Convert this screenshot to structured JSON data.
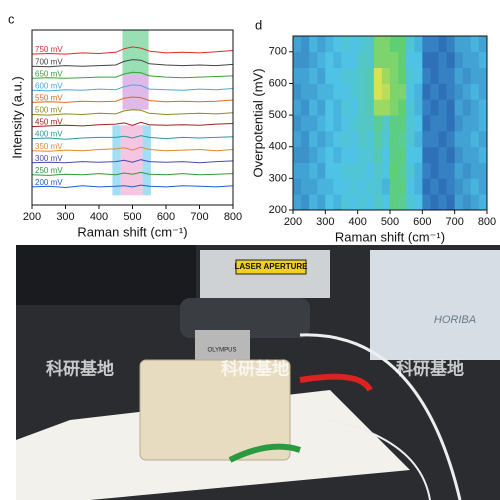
{
  "chart_data": [
    {
      "type": "line",
      "panel": "c",
      "ylabel": "Intensity (a.u.)",
      "xlabel": "Raman shift (cm⁻¹)",
      "xlim": [
        200,
        800
      ],
      "xticks": [
        200,
        300,
        400,
        500,
        600,
        700,
        800
      ],
      "ylim": [
        -0.5,
        14
      ],
      "x": [
        200,
        250,
        300,
        350,
        400,
        450,
        475,
        500,
        525,
        550,
        600,
        650,
        700,
        750,
        800
      ],
      "bands": [
        {
          "x": [
            470,
            548
          ],
          "y": [
            10.3,
            14
          ],
          "color": "#86d9a6"
        },
        {
          "x": [
            470,
            548
          ],
          "y": [
            7.4,
            10.3
          ],
          "color": "#d9ade3"
        },
        {
          "x": [
            440,
            465
          ],
          "y": [
            0.3,
            6.1
          ],
          "color": "#93d8f2"
        },
        {
          "x": [
            530,
            555
          ],
          "y": [
            0.3,
            6.1
          ],
          "color": "#93d8f2"
        },
        {
          "x": [
            465,
            530
          ],
          "y": [
            0.3,
            6.1
          ],
          "color": "#f2bcdc"
        }
      ],
      "series": [
        {
          "name": "200 mV",
          "color": "#1f5fd0",
          "values": [
            1.0,
            1.05,
            0.95,
            1.1,
            1.0,
            1.05,
            1.1,
            1.0,
            1.15,
            1.05,
            1.0,
            1.1,
            1.05,
            1.0,
            1.1
          ]
        },
        {
          "name": "250 mV",
          "color": "#2e9a3a",
          "values": [
            2.0,
            1.95,
            2.05,
            2.0,
            2.1,
            2.0,
            2.15,
            2.05,
            2.2,
            2.05,
            2.0,
            2.1,
            2.0,
            2.05,
            2.1
          ]
        },
        {
          "name": "300 mV",
          "color": "#4a4ab0",
          "values": [
            3.0,
            3.05,
            3.0,
            3.1,
            3.05,
            3.1,
            3.2,
            3.05,
            3.25,
            3.1,
            3.05,
            3.1,
            3.0,
            3.1,
            3.15
          ]
        },
        {
          "name": "350 mV",
          "color": "#e08a2a",
          "values": [
            4.0,
            3.95,
            4.05,
            4.0,
            4.1,
            4.15,
            4.25,
            4.05,
            4.3,
            4.1,
            4.0,
            4.05,
            4.1,
            4.0,
            4.1
          ]
        },
        {
          "name": "400 mV",
          "color": "#2a9a9a",
          "values": [
            5.0,
            5.05,
            4.95,
            5.05,
            5.1,
            5.1,
            5.2,
            5.05,
            5.25,
            5.1,
            5.0,
            5.1,
            5.05,
            5.1,
            5.15
          ]
        },
        {
          "name": "450 mV",
          "color": "#a02020",
          "values": [
            6.0,
            6.05,
            6.1,
            6.05,
            6.15,
            6.2,
            6.3,
            6.1,
            6.35,
            6.15,
            6.1,
            6.15,
            6.1,
            6.2,
            6.25
          ]
        },
        {
          "name": "500 mV",
          "color": "#8a8a20",
          "values": [
            7.0,
            6.95,
            7.05,
            7.0,
            7.1,
            7.05,
            7.3,
            7.4,
            7.35,
            7.1,
            7.0,
            7.05,
            7.1,
            7.05,
            7.15
          ]
        },
        {
          "name": "550 mV",
          "color": "#e06a20",
          "values": [
            8.0,
            8.05,
            8.0,
            8.1,
            8.05,
            8.1,
            8.35,
            8.45,
            8.4,
            8.15,
            8.05,
            8.1,
            8.05,
            8.1,
            8.2
          ]
        },
        {
          "name": "600 mV",
          "color": "#4aa8e0",
          "values": [
            9.0,
            8.95,
            9.05,
            9.0,
            9.1,
            9.05,
            9.3,
            9.45,
            9.4,
            9.1,
            9.05,
            9.0,
            9.1,
            9.05,
            9.15
          ]
        },
        {
          "name": "650 mV",
          "color": "#3aa040",
          "values": [
            10.0,
            10.05,
            10.0,
            10.05,
            10.1,
            10.1,
            10.35,
            10.5,
            10.45,
            10.2,
            10.1,
            10.05,
            10.1,
            10.15,
            10.2
          ]
        },
        {
          "name": "700 mV",
          "color": "#444444",
          "values": [
            11.0,
            10.95,
            11.05,
            11.0,
            11.05,
            11.1,
            11.4,
            11.55,
            11.5,
            11.2,
            11.1,
            11.05,
            11.1,
            11.05,
            11.15
          ]
        },
        {
          "name": "750 mV",
          "color": "#e02a2a",
          "values": [
            12.0,
            12.05,
            12.0,
            12.1,
            12.05,
            12.15,
            12.45,
            12.6,
            12.5,
            12.25,
            12.1,
            12.15,
            12.1,
            12.2,
            12.3
          ]
        }
      ]
    },
    {
      "type": "heatmap",
      "panel": "d",
      "ylabel": "Overpotential (mV)",
      "xlabel": "Raman shift (cm⁻¹)",
      "xlim": [
        200,
        800
      ],
      "xticks": [
        200,
        300,
        400,
        500,
        600,
        700,
        800
      ],
      "ylim": [
        200,
        750
      ],
      "yticks": [
        200,
        300,
        400,
        500,
        600,
        700
      ],
      "colorscale": [
        [
          0,
          "#1d3f9e"
        ],
        [
          0.4,
          "#4ec3e6"
        ],
        [
          0.75,
          "#5fcf74"
        ],
        [
          1,
          "#f4e84a"
        ]
      ],
      "xbins": [
        200,
        225,
        250,
        275,
        300,
        325,
        350,
        375,
        400,
        425,
        450,
        475,
        500,
        525,
        550,
        575,
        600,
        625,
        650,
        675,
        700,
        725,
        750,
        775,
        800
      ],
      "ybins": [
        200,
        250,
        300,
        350,
        400,
        450,
        500,
        550,
        600,
        650,
        700,
        750
      ],
      "z": [
        [
          0.3,
          0.25,
          0.35,
          0.3,
          0.4,
          0.35,
          0.45,
          0.4,
          0.45,
          0.4,
          0.5,
          0.4,
          0.7,
          0.65,
          0.45,
          0.4,
          0.2,
          0.15,
          0.2,
          0.15,
          0.3,
          0.25,
          0.3,
          0.35
        ],
        [
          0.25,
          0.3,
          0.3,
          0.35,
          0.35,
          0.4,
          0.4,
          0.45,
          0.4,
          0.45,
          0.45,
          0.35,
          0.7,
          0.7,
          0.4,
          0.35,
          0.15,
          0.2,
          0.15,
          0.2,
          0.25,
          0.3,
          0.35,
          0.3
        ],
        [
          0.3,
          0.3,
          0.35,
          0.3,
          0.4,
          0.4,
          0.45,
          0.45,
          0.45,
          0.4,
          0.5,
          0.4,
          0.75,
          0.65,
          0.45,
          0.35,
          0.2,
          0.15,
          0.2,
          0.2,
          0.3,
          0.25,
          0.3,
          0.3
        ],
        [
          0.25,
          0.25,
          0.3,
          0.35,
          0.4,
          0.35,
          0.4,
          0.4,
          0.45,
          0.45,
          0.55,
          0.4,
          0.7,
          0.7,
          0.4,
          0.4,
          0.15,
          0.15,
          0.2,
          0.15,
          0.25,
          0.3,
          0.3,
          0.35
        ],
        [
          0.3,
          0.25,
          0.35,
          0.3,
          0.35,
          0.4,
          0.45,
          0.4,
          0.5,
          0.45,
          0.6,
          0.45,
          0.7,
          0.65,
          0.45,
          0.35,
          0.2,
          0.2,
          0.15,
          0.2,
          0.3,
          0.3,
          0.35,
          0.3
        ],
        [
          0.25,
          0.3,
          0.3,
          0.35,
          0.4,
          0.35,
          0.4,
          0.45,
          0.5,
          0.5,
          0.65,
          0.5,
          0.7,
          0.7,
          0.45,
          0.4,
          0.15,
          0.2,
          0.2,
          0.15,
          0.25,
          0.3,
          0.3,
          0.35
        ],
        [
          0.3,
          0.25,
          0.35,
          0.3,
          0.4,
          0.35,
          0.45,
          0.4,
          0.5,
          0.55,
          0.85,
          0.85,
          0.8,
          0.75,
          0.45,
          0.35,
          0.2,
          0.15,
          0.2,
          0.15,
          0.3,
          0.25,
          0.3,
          0.35
        ],
        [
          0.25,
          0.3,
          0.3,
          0.35,
          0.35,
          0.4,
          0.4,
          0.45,
          0.5,
          0.55,
          0.95,
          0.9,
          0.8,
          0.8,
          0.4,
          0.35,
          0.15,
          0.2,
          0.15,
          0.2,
          0.25,
          0.3,
          0.35,
          0.3
        ],
        [
          0.3,
          0.3,
          0.35,
          0.3,
          0.4,
          0.4,
          0.45,
          0.45,
          0.5,
          0.55,
          0.95,
          0.85,
          0.8,
          0.75,
          0.45,
          0.4,
          0.2,
          0.15,
          0.2,
          0.2,
          0.3,
          0.25,
          0.3,
          0.3
        ],
        [
          0.25,
          0.25,
          0.3,
          0.35,
          0.4,
          0.35,
          0.4,
          0.4,
          0.5,
          0.5,
          0.8,
          0.8,
          0.8,
          0.75,
          0.4,
          0.4,
          0.15,
          0.15,
          0.2,
          0.15,
          0.25,
          0.3,
          0.3,
          0.35
        ],
        [
          0.3,
          0.25,
          0.35,
          0.3,
          0.35,
          0.4,
          0.45,
          0.4,
          0.45,
          0.5,
          0.8,
          0.8,
          0.75,
          0.75,
          0.45,
          0.35,
          0.2,
          0.2,
          0.15,
          0.2,
          0.3,
          0.3,
          0.35,
          0.3
        ]
      ]
    }
  ],
  "photo": {
    "labels": [
      "LASER APERTURE",
      "OLYMPUS",
      "HORIBA"
    ],
    "watermark": "科研基地"
  }
}
